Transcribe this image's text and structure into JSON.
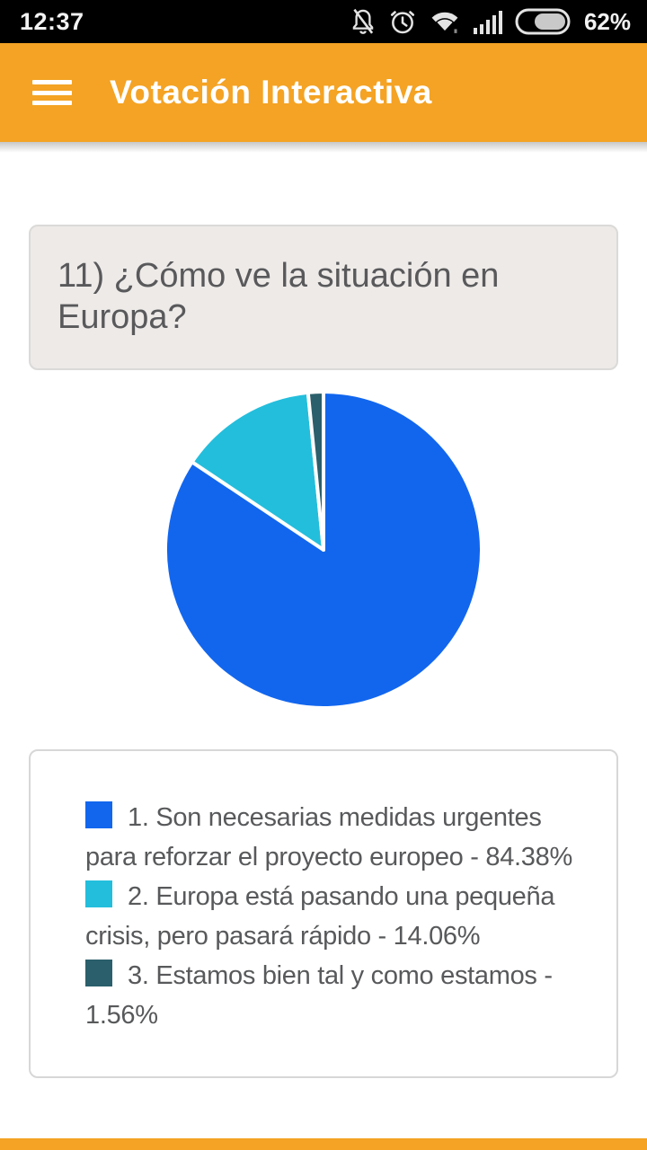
{
  "status_bar": {
    "time": "12:37",
    "battery_percent": "62%",
    "icons": [
      "mute-bell-icon",
      "alarm-icon",
      "wifi-icon",
      "signal-icon",
      "battery-icon"
    ]
  },
  "header": {
    "title": "Votación Interactiva",
    "background_color": "#F4A324"
  },
  "question": {
    "text": "11) ¿Cómo ve la situación en Europa?"
  },
  "chart_data": {
    "type": "pie",
    "title": "11) ¿Cómo ve la situación en Europa?",
    "start_angle_deg": 0,
    "direction": "clockwise",
    "slice_separator_color": "#FFFFFF",
    "legend_position": "below",
    "slices": [
      {
        "label": "1. Son necesarias medidas urgentes para reforzar el proyecto europeo",
        "percent": 84.38,
        "color": "#1266EE"
      },
      {
        "label": "2. Europa está pasando una pequeña crisis, pero pasará rápido",
        "percent": 14.06,
        "color": "#23BEDC"
      },
      {
        "label": "3. Estamos bien tal y como estamos",
        "percent": 1.56,
        "color": "#2B5F6B"
      }
    ]
  },
  "legend": {
    "items": [
      {
        "color": "#1266EE",
        "lines": [
          "1. Son necesarias medidas urgentes",
          "para reforzar el proyecto europeo - 84.38%"
        ]
      },
      {
        "color": "#23BEDC",
        "lines": [
          "2. Europa está pasando una pequeña",
          "crisis, pero pasará rápido - 14.06%"
        ]
      },
      {
        "color": "#2B5F6B",
        "lines": [
          "3. Estamos bien tal y como estamos -",
          "1.56%"
        ]
      }
    ]
  },
  "colors": {
    "status_bar_bg": "#000000",
    "accent_orange": "#F4A324",
    "question_card_bg": "#EDEAE8",
    "card_border": "#D7D7D7",
    "body_text": "#58595B"
  }
}
